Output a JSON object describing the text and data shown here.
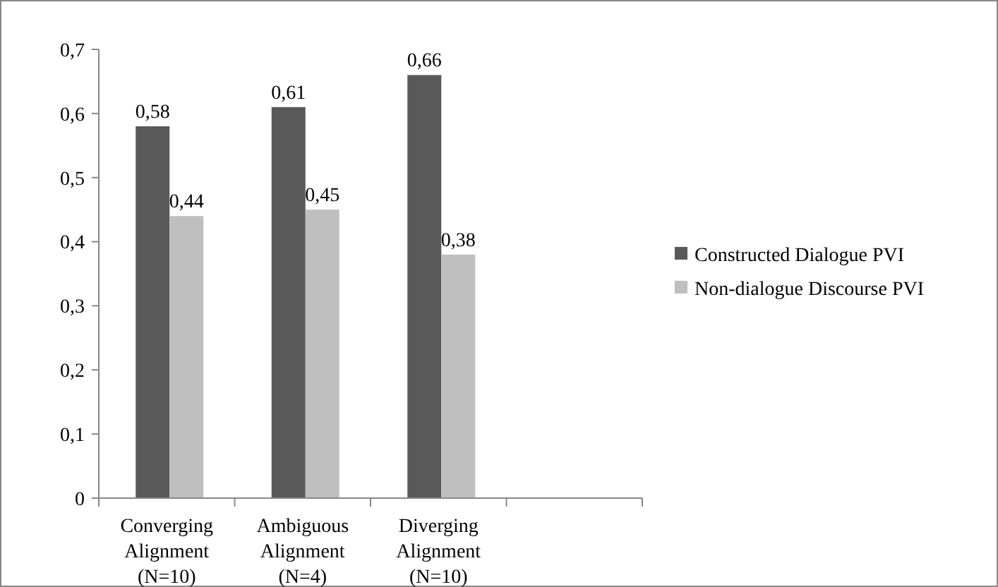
{
  "chart_data": {
    "type": "bar",
    "categories": [
      "Converging\nAlignment\n(N=10)",
      "Ambiguous\nAlignment\n(N=4)",
      "Diverging\nAlignment\n(N=10)",
      null
    ],
    "series": [
      {
        "name": "Constructed Dialogue PVI",
        "color": "#595959",
        "values": [
          0.58,
          0.61,
          0.66,
          null
        ],
        "value_labels": [
          "0,58",
          "0,61",
          "0,66",
          null
        ]
      },
      {
        "name": "Non-dialogue Discourse PVI",
        "color": "#bfbfbf",
        "values": [
          0.44,
          0.45,
          0.38,
          null
        ],
        "value_labels": [
          "0,44",
          "0,45",
          "0,38",
          null
        ]
      }
    ],
    "ylim": [
      0,
      0.7
    ],
    "yticks": [
      0,
      {
        "value": 0.1,
        "label": "0,1"
      },
      {
        "value": 0.2,
        "label": "0,2"
      },
      {
        "value": 0.3,
        "label": "0,3"
      },
      {
        "value": 0.4,
        "label": "0,4"
      },
      {
        "value": 0.5,
        "label": "0,5"
      },
      {
        "value": 0.6,
        "label": "0,6"
      },
      {
        "value": 0.7,
        "label": "0,7"
      }
    ],
    "grid": false,
    "legend": "right"
  }
}
